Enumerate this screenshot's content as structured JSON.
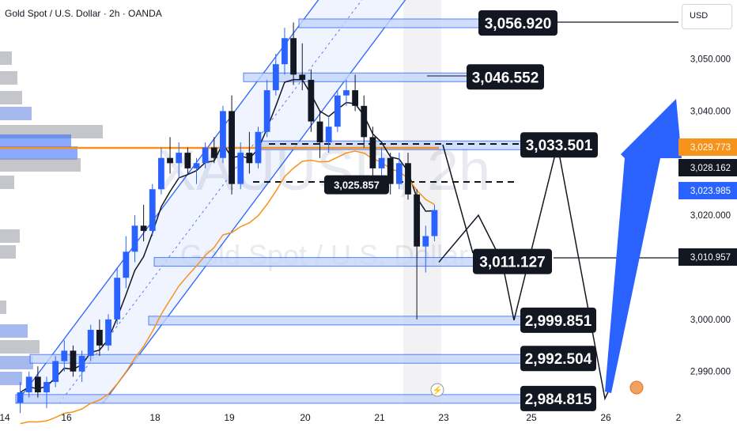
{
  "header": {
    "title": "Gold Spot / U.S. Dollar · 2h · OANDA",
    "currency": "USD"
  },
  "watermark": {
    "ticker": "XAUUSD, 2h",
    "name": "Gold Spot / U.S. Dollar"
  },
  "colors": {
    "up": "#2962ff",
    "down": "#131722",
    "ema_fast": "#131722",
    "ema_slow": "#f7931a",
    "hline": "#f7931a",
    "zone_fill": "#c5d6fb",
    "zone_border": "#2962ff",
    "arrow": "#2962ff",
    "axis_highlight": "#2962ff"
  },
  "chart_data": {
    "type": "candlestick",
    "symbol": "Gold Spot / U.S. Dollar",
    "interval": "2h",
    "exchange": "OANDA",
    "ylim": [
      2980,
      3062
    ],
    "x_tick_labels": [
      "14",
      "16",
      "18",
      "19",
      "20",
      "21",
      "23",
      "25",
      "26",
      "2"
    ],
    "y_tick_labels": [
      "3,050.000",
      "3,040.000",
      "3,020.000",
      "3,000.000",
      "2,990.000"
    ],
    "price_labels": {
      "orange_level": "3,029.773",
      "current": "3,028.162",
      "blue_level": "3,023.985",
      "black_level": "3,010.957"
    },
    "candles_ohlc": [
      [
        2984,
        2988,
        2982,
        2986
      ],
      [
        2986,
        2990,
        2985,
        2989
      ],
      [
        2989,
        2991,
        2985,
        2986
      ],
      [
        2986,
        2989,
        2983,
        2988
      ],
      [
        2988,
        2993,
        2987,
        2992
      ],
      [
        2992,
        2996,
        2990,
        2994
      ],
      [
        2994,
        2995,
        2989,
        2990
      ],
      [
        2990,
        2994,
        2988,
        2993
      ],
      [
        2993,
        2999,
        2992,
        2998
      ],
      [
        2998,
        3000,
        2993,
        2995
      ],
      [
        2995,
        3001,
        2994,
        3000
      ],
      [
        3000,
        3010,
        2999,
        3008
      ],
      [
        3008,
        3016,
        3006,
        3013
      ],
      [
        3013,
        3020,
        3011,
        3018
      ],
      [
        3018,
        3022,
        3015,
        3017
      ],
      [
        3017,
        3026,
        3016,
        3025
      ],
      [
        3025,
        3033,
        3024,
        3031
      ],
      [
        3031,
        3035,
        3028,
        3030
      ],
      [
        3030,
        3034,
        3027,
        3032
      ],
      [
        3032,
        3033,
        3028,
        3029
      ],
      [
        3029,
        3031,
        3026,
        3030
      ],
      [
        3030,
        3034,
        3029,
        3033
      ],
      [
        3033,
        3035,
        3030,
        3031
      ],
      [
        3031,
        3041,
        3030,
        3040
      ],
      [
        3040,
        3043,
        3024,
        3026
      ],
      [
        3026,
        3034,
        3025,
        3032
      ],
      [
        3032,
        3036,
        3028,
        3030
      ],
      [
        3030,
        3037,
        3029,
        3036
      ],
      [
        3036,
        3046,
        3035,
        3044
      ],
      [
        3044,
        3051,
        3043,
        3049
      ],
      [
        3049,
        3056,
        3047,
        3054
      ],
      [
        3054,
        3057,
        3045,
        3047
      ],
      [
        3047,
        3053,
        3044,
        3046
      ],
      [
        3046,
        3048,
        3036,
        3038
      ],
      [
        3038,
        3040,
        3031,
        3034
      ],
      [
        3034,
        3039,
        3032,
        3037
      ],
      [
        3037,
        3044,
        3036,
        3043
      ],
      [
        3043,
        3046,
        3041,
        3044
      ],
      [
        3044,
        3047,
        3040,
        3041
      ],
      [
        3041,
        3043,
        3033,
        3035
      ],
      [
        3035,
        3037,
        3027,
        3029
      ],
      [
        3029,
        3033,
        3027,
        3031
      ],
      [
        3031,
        3032,
        3024,
        3026
      ],
      [
        3026,
        3032,
        3025,
        3030
      ],
      [
        3030,
        3032,
        3023,
        3024
      ],
      [
        3024,
        3025,
        3000,
        3014
      ],
      [
        3014,
        3018,
        3009,
        3016
      ],
      [
        3016,
        3022,
        3015,
        3021
      ]
    ],
    "levels": [
      {
        "label": "3,056.920",
        "value": 3056.92
      },
      {
        "label": "3,046.552",
        "value": 3046.552
      },
      {
        "label": "3,033.501",
        "value": 3033.501
      },
      {
        "label": "3,025.857",
        "value": 3025.857
      },
      {
        "label": "3,011.127",
        "value": 3011.127
      },
      {
        "label": "2,999.851",
        "value": 2999.851
      },
      {
        "label": "2,992.504",
        "value": 2992.504
      },
      {
        "label": "2,984.815",
        "value": 2984.815
      }
    ],
    "projected_path": [
      3011,
      3020,
      3011,
      2999.85,
      3033.5,
      2984.8,
      2988
    ],
    "arrow": {
      "from": 2984.8,
      "to": 3040
    }
  }
}
